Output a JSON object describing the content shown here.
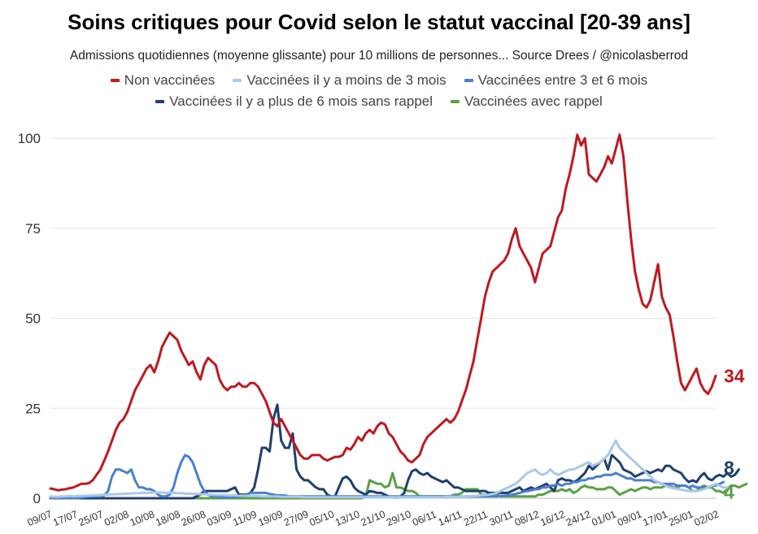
{
  "chart_data": {
    "type": "line",
    "title": "Soins critiques pour Covid selon le statut vaccinal [20-39 ans]",
    "subtitle": "Admissions quotidiennes (moyenne glissante) pour 10 millions de personnes... Source Drees / @nicolasberrod",
    "ylim": [
      0,
      105
    ],
    "y_ticks": [
      0,
      25,
      50,
      75,
      100
    ],
    "x_ticks": [
      "09/07",
      "17/07",
      "25/07",
      "02/08",
      "10/08",
      "18/08",
      "26/08",
      "03/09",
      "11/09",
      "19/09",
      "27/09",
      "05/10",
      "13/10",
      "21/10",
      "29/10",
      "06/11",
      "14/11",
      "22/11",
      "30/11",
      "08/12",
      "16/12",
      "24/12",
      "01/01",
      "09/01",
      "17/01",
      "25/01",
      "02/02"
    ],
    "grid": true,
    "legend_position": "top",
    "x_start": "09/07",
    "series": [
      {
        "name": "Non vaccinées",
        "color": "#c0181f",
        "end_label": "34",
        "values": [
          2.7,
          2.5,
          2.2,
          2.4,
          2.5,
          2.8,
          3,
          3.5,
          4,
          4,
          4.2,
          5,
          6.5,
          8,
          10.5,
          13,
          16,
          19,
          21,
          22,
          24,
          27,
          30,
          32,
          34,
          36,
          37,
          35,
          38,
          42,
          44,
          46,
          45,
          44,
          41,
          39,
          37,
          38,
          35,
          33,
          37,
          39,
          38,
          37,
          33,
          31,
          30,
          31,
          31,
          32,
          31,
          31,
          32,
          32,
          31,
          29,
          27,
          24,
          21,
          20,
          22,
          20,
          18,
          16,
          14,
          12,
          11,
          11,
          12,
          12,
          12,
          11,
          10.5,
          11,
          11.5,
          11.5,
          12,
          14,
          13.5,
          15,
          17,
          16,
          18,
          19,
          18,
          20,
          21,
          20.5,
          18,
          17,
          15,
          13,
          12,
          10.5,
          10,
          11,
          12,
          15,
          17,
          18,
          19,
          20,
          21,
          22,
          21,
          22,
          24,
          27,
          30,
          34,
          38,
          44,
          50,
          56,
          60,
          63,
          64,
          65,
          66,
          68,
          72,
          75,
          70,
          68,
          66,
          64,
          60,
          64,
          68,
          69,
          70,
          74,
          78,
          80,
          86,
          90,
          95,
          101,
          98,
          100,
          90,
          89,
          88,
          90,
          92,
          95,
          93,
          97,
          101,
          95,
          83,
          72,
          63,
          58,
          54,
          53,
          55,
          60,
          65,
          56,
          53,
          51,
          45,
          38,
          32,
          30,
          32,
          34,
          36,
          32,
          30,
          29,
          31,
          34
        ]
      },
      {
        "name": "Vaccinées il y a moins de 3 mois",
        "color": "#a9c8ec",
        "values": [
          0.5,
          0.4,
          0.4,
          0.5,
          0.5,
          0.6,
          0.5,
          0.6,
          0.6,
          0.7,
          0.7,
          0.8,
          0.8,
          0.9,
          1,
          1,
          1.1,
          1.1,
          1.2,
          1.2,
          1.3,
          1.3,
          1.4,
          1.4,
          1.5,
          1.5,
          1.5,
          1.6,
          1.6,
          1.6,
          1.5,
          1.5,
          1.5,
          1.4,
          1.4,
          1.3,
          1.3,
          1.2,
          1.2,
          1.1,
          1.1,
          1,
          1,
          0.9,
          0.9,
          0.9,
          0.8,
          0.8,
          0.8,
          0.7,
          0.7,
          0.7,
          0.6,
          0.6,
          0.6,
          0.5,
          0.5,
          0.5,
          0.5,
          0.5,
          0.4,
          0.4,
          0.4,
          0.4,
          0.4,
          0.4,
          0.3,
          0.3,
          0.3,
          0.3,
          0.3,
          0.3,
          0.3,
          0.3,
          0.3,
          0.3,
          0.3,
          0.3,
          0.3,
          0.3,
          0.3,
          0.3,
          0.3,
          0.3,
          0.3,
          0.3,
          0.3,
          0.3,
          0.3,
          0.3,
          0.3,
          0.3,
          0.3,
          0.3,
          0.3,
          0.3,
          0.3,
          0.3,
          0.3,
          0.3,
          0.3,
          0.3,
          0.3,
          0.4,
          0.4,
          0.4,
          0.4,
          0.5,
          0.5,
          0.6,
          0.6,
          0.7,
          0.8,
          0.9,
          1,
          1.2,
          1.5,
          2,
          2.5,
          3,
          3.5,
          4,
          5,
          6,
          7,
          7.5,
          8,
          7,
          6.5,
          7,
          8,
          7,
          6.5,
          7,
          7.5,
          8,
          8,
          8.5,
          9,
          9.5,
          10,
          9,
          9.5,
          10,
          11,
          12,
          14,
          16,
          14,
          13,
          12,
          11,
          10,
          9,
          8,
          7,
          6,
          5,
          4.5,
          4,
          3.5,
          3,
          2.8,
          2.6,
          2.4,
          2.2,
          2,
          2,
          2,
          2.2,
          2.5,
          3,
          3.5,
          4,
          3.5,
          3,
          3,
          3
        ]
      },
      {
        "name": "Vaccinées entre 3 et 6 mois",
        "color": "#4a7fd0",
        "values": [
          0,
          0,
          0,
          0,
          0,
          0,
          0,
          0,
          0.2,
          0.3,
          0.5,
          0.5,
          0.5,
          0.5,
          0.8,
          2,
          6,
          8,
          8,
          7.5,
          7,
          8,
          5,
          3,
          3,
          2.5,
          2.5,
          2,
          1,
          0.5,
          0.5,
          1,
          3,
          7,
          10,
          12,
          11.5,
          10,
          7,
          4,
          2,
          1,
          0.5,
          0.5,
          0.3,
          0.3,
          0.3,
          0.3,
          0.3,
          0.5,
          0.5,
          0.8,
          1.5,
          1.5,
          1.5,
          1.5,
          1.5,
          1.2,
          1,
          0.8,
          0.8,
          0.8,
          0.5,
          0.5,
          0.5,
          0.5,
          0.5,
          0.5,
          0.5,
          0.5,
          0.5,
          0.5,
          0.5,
          0.5,
          0.5,
          0.5,
          0.5,
          0.5,
          0.5,
          0.5,
          0.5,
          0.5,
          0.5,
          0.5,
          0.5,
          0.5,
          0.5,
          0.5,
          0.5,
          0.5,
          0.5,
          0.5,
          0.5,
          0.5,
          0.5,
          0.5,
          0.5,
          0.5,
          0.5,
          0.5,
          0.5,
          0.5,
          0.5,
          0.5,
          0.5,
          0.5,
          0.5,
          0.5,
          0.5,
          0.5,
          0.5,
          0.5,
          0.5,
          0.5,
          0.5,
          0.5,
          0.5,
          0.6,
          0.7,
          0.8,
          1,
          1.2,
          1.5,
          1.8,
          2,
          2.2,
          2.5,
          2.5,
          3,
          3,
          3.5,
          3.5,
          4,
          3.5,
          4,
          4,
          4.5,
          4.5,
          5,
          5,
          5.5,
          5.5,
          6,
          6,
          6.5,
          6.5,
          6.5,
          7,
          6.5,
          6,
          5.5,
          5.5,
          5,
          5,
          5,
          5,
          5,
          4.5,
          4.5,
          4,
          4,
          4,
          4,
          3.5,
          3.5,
          3.5,
          3,
          3.5,
          3,
          3,
          3,
          3,
          3.5,
          3.5,
          4,
          4.5
        ]
      },
      {
        "name": "Vaccinées il y a plus de 6 mois sans rappel",
        "color": "#1f3f6e",
        "end_label": "8",
        "values": [
          0,
          0,
          0,
          0,
          0,
          0,
          0,
          0,
          0,
          0,
          0,
          0,
          0,
          0,
          0,
          0,
          0,
          0,
          0,
          0,
          0,
          0,
          0,
          0,
          0,
          0,
          0,
          0,
          0,
          0,
          0,
          0,
          0,
          0,
          0,
          0,
          0,
          0,
          0.5,
          1,
          2,
          2,
          2,
          2,
          2,
          2,
          2,
          2.5,
          3,
          1,
          1,
          1,
          1.5,
          3,
          8,
          14,
          14,
          13,
          22,
          26,
          16,
          14,
          14,
          18,
          8,
          6,
          5,
          5,
          4,
          3,
          2.5,
          2.5,
          1,
          0.5,
          0.5,
          3,
          5.5,
          6,
          5,
          3,
          2,
          1.5,
          1,
          2,
          1.8,
          1.5,
          1.5,
          1,
          0.5,
          0.3,
          0.2,
          0.5,
          1.5,
          5,
          7.5,
          8,
          7,
          6.5,
          7,
          6,
          5.5,
          5,
          4.5,
          5,
          4,
          3,
          3,
          2.5,
          2,
          2,
          2,
          2,
          2,
          2,
          1.5,
          1.5,
          1.5,
          1.5,
          1.5,
          1.5,
          2,
          2.5,
          3,
          2,
          2.5,
          3,
          2.5,
          3,
          3.5,
          4,
          3,
          2,
          5,
          5.5,
          5,
          5,
          4.5,
          5,
          6,
          7,
          9,
          8,
          9,
          10,
          11,
          8,
          12,
          11,
          10,
          8,
          7.5,
          7,
          6,
          6.5,
          7,
          7.5,
          7,
          7.5,
          8,
          7.5,
          9,
          9,
          8,
          7.5,
          7,
          5.5,
          4.5,
          5,
          4.5,
          6,
          7,
          5.5,
          5,
          6,
          6.5,
          6,
          7,
          6,
          6.5,
          8
        ]
      },
      {
        "name": "Vaccinées avec rappel",
        "color": "#5aa045",
        "end_label": "4",
        "values": [
          0,
          0,
          0,
          0,
          0,
          0,
          0,
          0,
          0,
          0,
          0,
          0,
          0,
          0,
          0,
          0,
          0,
          0,
          0,
          0,
          0,
          0,
          0,
          0,
          0,
          0,
          0,
          0,
          0,
          0,
          0,
          0,
          0,
          0,
          0,
          0,
          0,
          0,
          0,
          0,
          0,
          0,
          0,
          0,
          0,
          0,
          0,
          0,
          0,
          0,
          0,
          0,
          0,
          0,
          0,
          0,
          0,
          0,
          0,
          0,
          0,
          0,
          0,
          0,
          0,
          0,
          0,
          0,
          0,
          0,
          0,
          0,
          0,
          0,
          0,
          0,
          0,
          0,
          0,
          0,
          0,
          0,
          0.5,
          5,
          4.5,
          4,
          4,
          3,
          3.5,
          7,
          3,
          3,
          2.5,
          2,
          2,
          1.5,
          0.5,
          0.5,
          0.5,
          0.5,
          0.5,
          0.5,
          0.5,
          0.5,
          0.5,
          1,
          1,
          1.5,
          2.5,
          2.5,
          2.5,
          2.5,
          1,
          1,
          1,
          1,
          1,
          0.5,
          0.5,
          0.5,
          0.5,
          0.5,
          0.5,
          0.5,
          0.5,
          0.5,
          0.5,
          1,
          1,
          1.5,
          2,
          2,
          2,
          2.5,
          2,
          2.5,
          1.5,
          2,
          3,
          3.5,
          3,
          3,
          2.5,
          2.5,
          2.5,
          3,
          3,
          2,
          1,
          1.5,
          2,
          2.5,
          2,
          2.5,
          3,
          3,
          2.5,
          3,
          3,
          3,
          3.5,
          3.5,
          3,
          3,
          3.5,
          3.5,
          3,
          2,
          2,
          3,
          3.5,
          3,
          3,
          2,
          2,
          1.5,
          2.5,
          3.5,
          3.5,
          3,
          3.5,
          4
        ]
      }
    ]
  }
}
